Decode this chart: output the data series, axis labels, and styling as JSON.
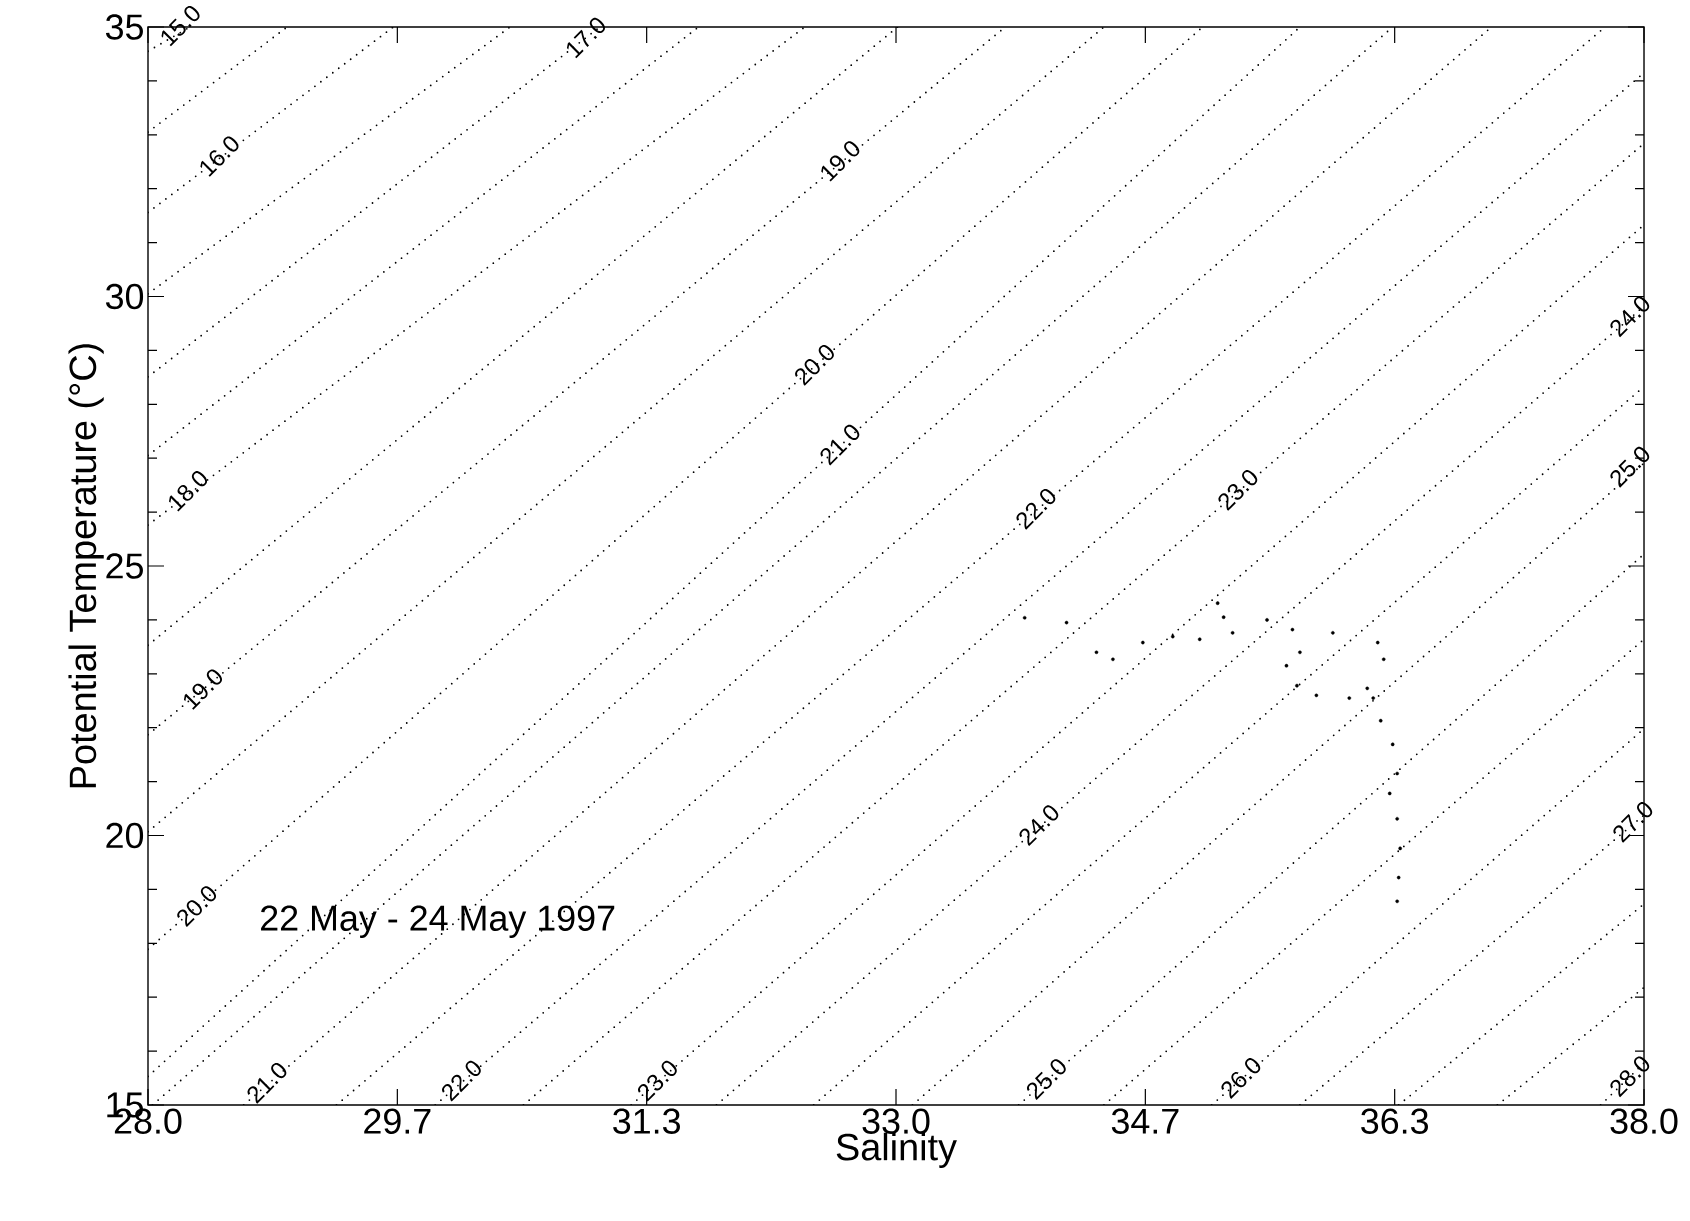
{
  "chart_data": {
    "type": "scatter",
    "xlabel": "Salinity",
    "ylabel": "Potential Temperature (°C)",
    "xlim": [
      28,
      38
    ],
    "ylim": [
      15,
      35
    ],
    "xticks": [
      {
        "value": 28,
        "label": "28.0"
      },
      {
        "value": 29.6667,
        "label": "29.7"
      },
      {
        "value": 31.3333,
        "label": "31.3"
      },
      {
        "value": 33,
        "label": "33.0"
      },
      {
        "value": 34.6667,
        "label": "34.7"
      },
      {
        "value": 36.3333,
        "label": "36.3"
      },
      {
        "value": 38,
        "label": "38.0"
      }
    ],
    "yticks": [
      15,
      20,
      25,
      30,
      35
    ],
    "series": [
      {
        "type": "line",
        "line_style": "dotted",
        "color": "#000000",
        "x": [
          28,
          28.28
        ],
        "values": [
          34.55,
          35
        ]
      },
      {
        "type": "line",
        "line_style": "dotted",
        "color": "#000000",
        "x": [
          28,
          28.93
        ],
        "values": [
          33.05,
          35
        ]
      },
      {
        "type": "line",
        "line_style": "dotted",
        "color": "#000000",
        "x": [
          28,
          29.64
        ],
        "values": [
          31.56,
          35
        ]
      },
      {
        "type": "line",
        "line_style": "dotted",
        "color": "#000000",
        "x": [
          28,
          30.42
        ],
        "values": [
          30.05,
          35
        ]
      },
      {
        "type": "line",
        "line_style": "dotted",
        "color": "#000000",
        "x": [
          28,
          31.02
        ],
        "values": [
          28.51,
          35
        ]
      },
      {
        "type": "line",
        "line_style": "dotted",
        "color": "#000000",
        "x": [
          28,
          31.68
        ],
        "values": [
          27.05,
          35
        ]
      },
      {
        "type": "line",
        "line_style": "dotted",
        "color": "#000000",
        "x": [
          28,
          32.39
        ],
        "values": [
          25.76,
          35
        ]
      },
      {
        "type": "line",
        "line_style": "dotted",
        "color": "#000000",
        "x": [
          28,
          33.01
        ],
        "values": [
          23.53,
          35
        ]
      },
      {
        "type": "line",
        "line_style": "dotted",
        "color": "#000000",
        "x": [
          28,
          33.73
        ],
        "values": [
          21.87,
          35
        ]
      },
      {
        "type": "line",
        "line_style": "dotted",
        "color": "#000000",
        "x": [
          28,
          34.39
        ],
        "values": [
          20.07,
          35
        ]
      },
      {
        "type": "line",
        "line_style": "dotted",
        "color": "#000000",
        "x": [
          28,
          35.05
        ],
        "values": [
          17.89,
          35
        ]
      },
      {
        "type": "line",
        "line_style": "dotted",
        "color": "#000000",
        "x": [
          28,
          35.7
        ],
        "values": [
          15.53,
          35
        ]
      },
      {
        "type": "line",
        "line_style": "dotted",
        "color": "#000000",
        "x": [
          28.03,
          36.32
        ],
        "values": [
          15,
          35
        ]
      },
      {
        "type": "line",
        "line_style": "dotted",
        "color": "#000000",
        "x": [
          28.64,
          36.98
        ],
        "values": [
          15,
          35
        ]
      },
      {
        "type": "line",
        "line_style": "dotted",
        "color": "#000000",
        "x": [
          29.26,
          37.74
        ],
        "values": [
          15,
          35
        ]
      },
      {
        "type": "line",
        "line_style": "dotted",
        "color": "#000000",
        "x": [
          29.92,
          38
        ],
        "values": [
          15,
          34.15
        ]
      },
      {
        "type": "line",
        "line_style": "dotted",
        "color": "#000000",
        "x": [
          30.51,
          38
        ],
        "values": [
          15,
          32.84
        ]
      },
      {
        "type": "line",
        "line_style": "dotted",
        "color": "#000000",
        "x": [
          31.23,
          38
        ],
        "values": [
          15,
          31.33
        ]
      },
      {
        "type": "line",
        "line_style": "dotted",
        "color": "#000000",
        "x": [
          31.8,
          38
        ],
        "values": [
          15,
          29.82
        ]
      },
      {
        "type": "line",
        "line_style": "dotted",
        "color": "#000000",
        "x": [
          32.45,
          38
        ],
        "values": [
          15,
          28.33
        ]
      },
      {
        "type": "line",
        "line_style": "dotted",
        "color": "#000000",
        "x": [
          33.11,
          38
        ],
        "values": [
          15,
          26.91
        ]
      },
      {
        "type": "line",
        "line_style": "dotted",
        "color": "#000000",
        "x": [
          33.82,
          38
        ],
        "values": [
          15,
          25.22
        ]
      },
      {
        "type": "line",
        "line_style": "dotted",
        "color": "#000000",
        "x": [
          34.39,
          38
        ],
        "values": [
          15,
          23.64
        ]
      },
      {
        "type": "line",
        "line_style": "dotted",
        "color": "#000000",
        "x": [
          35.11,
          38
        ],
        "values": [
          15,
          21.98
        ]
      },
      {
        "type": "line",
        "line_style": "dotted",
        "color": "#000000",
        "x": [
          35.7,
          38
        ],
        "values": [
          15,
          20.38
        ]
      },
      {
        "type": "line",
        "line_style": "dotted",
        "color": "#000000",
        "x": [
          36.36,
          38
        ],
        "values": [
          15,
          18.73
        ]
      },
      {
        "type": "line",
        "line_style": "dotted",
        "color": "#000000",
        "x": [
          37.02,
          38
        ],
        "values": [
          15,
          17.18
        ]
      },
      {
        "type": "line",
        "line_style": "dotted",
        "color": "#000000",
        "x": [
          37.71,
          38
        ],
        "values": [
          15,
          15.78
        ]
      },
      {
        "type": "scatter",
        "color": "#000000",
        "x": [
          33.86,
          34.14,
          34.34,
          34.45,
          34.65,
          34.85,
          35.03,
          35.15,
          35.19,
          35.25,
          35.48,
          35.65,
          35.7,
          35.92,
          36.22,
          36.26,
          36.15,
          36.03,
          35.81,
          35.68,
          35.61,
          36.19,
          36.24,
          36.32,
          36.35,
          36.3,
          36.35,
          36.37,
          36.36,
          36.35
        ],
        "values": [
          24.04,
          23.95,
          23.4,
          23.27,
          23.58,
          23.69,
          23.64,
          24.31,
          24.05,
          23.76,
          24.0,
          23.82,
          23.4,
          23.76,
          23.58,
          23.27,
          22.73,
          22.55,
          22.6,
          22.78,
          23.15,
          22.55,
          22.13,
          21.69,
          21.15,
          20.78,
          20.31,
          19.76,
          19.22,
          18.78
        ]
      }
    ],
    "annotations": [
      "22 May - 24 May 1997",
      {
        "text": "15.0",
        "x": 28.1,
        "y": 34.71
      },
      {
        "text": "16.0",
        "x": 28.36,
        "y": 32.29
      },
      {
        "text": "17.0",
        "x": 30.81,
        "y": 34.49
      },
      {
        "text": "18.0",
        "x": 28.15,
        "y": 26.08
      },
      {
        "text": "19.0",
        "x": 32.51,
        "y": 32.2
      },
      {
        "text": "20.0",
        "x": 32.34,
        "y": 28.42
      },
      {
        "text": "21.0",
        "x": 32.51,
        "y": 26.94
      },
      {
        "text": "19.0",
        "x": 28.25,
        "y": 22.4
      },
      {
        "text": "20.0",
        "x": 28.21,
        "y": 18.38
      },
      {
        "text": "21.0",
        "x": 28.68,
        "y": 15.1
      },
      {
        "text": "22.0",
        "x": 29.98,
        "y": 15.14
      },
      {
        "text": "23.0",
        "x": 31.29,
        "y": 15.14
      },
      {
        "text": "22.0",
        "x": 33.82,
        "y": 25.75
      },
      {
        "text": "23.0",
        "x": 35.17,
        "y": 26.1
      },
      {
        "text": "24.0",
        "x": 37.79,
        "y": 29.32
      },
      {
        "text": "25.0",
        "x": 37.79,
        "y": 26.53
      },
      {
        "text": "24.0",
        "x": 33.84,
        "y": 19.88
      },
      {
        "text": "25.0",
        "x": 33.89,
        "y": 15.17
      },
      {
        "text": "26.0",
        "x": 35.19,
        "y": 15.19
      },
      {
        "text": "27.0",
        "x": 37.81,
        "y": 19.94
      },
      {
        "text": "28.0",
        "x": 37.79,
        "y": 15.22
      }
    ]
  }
}
